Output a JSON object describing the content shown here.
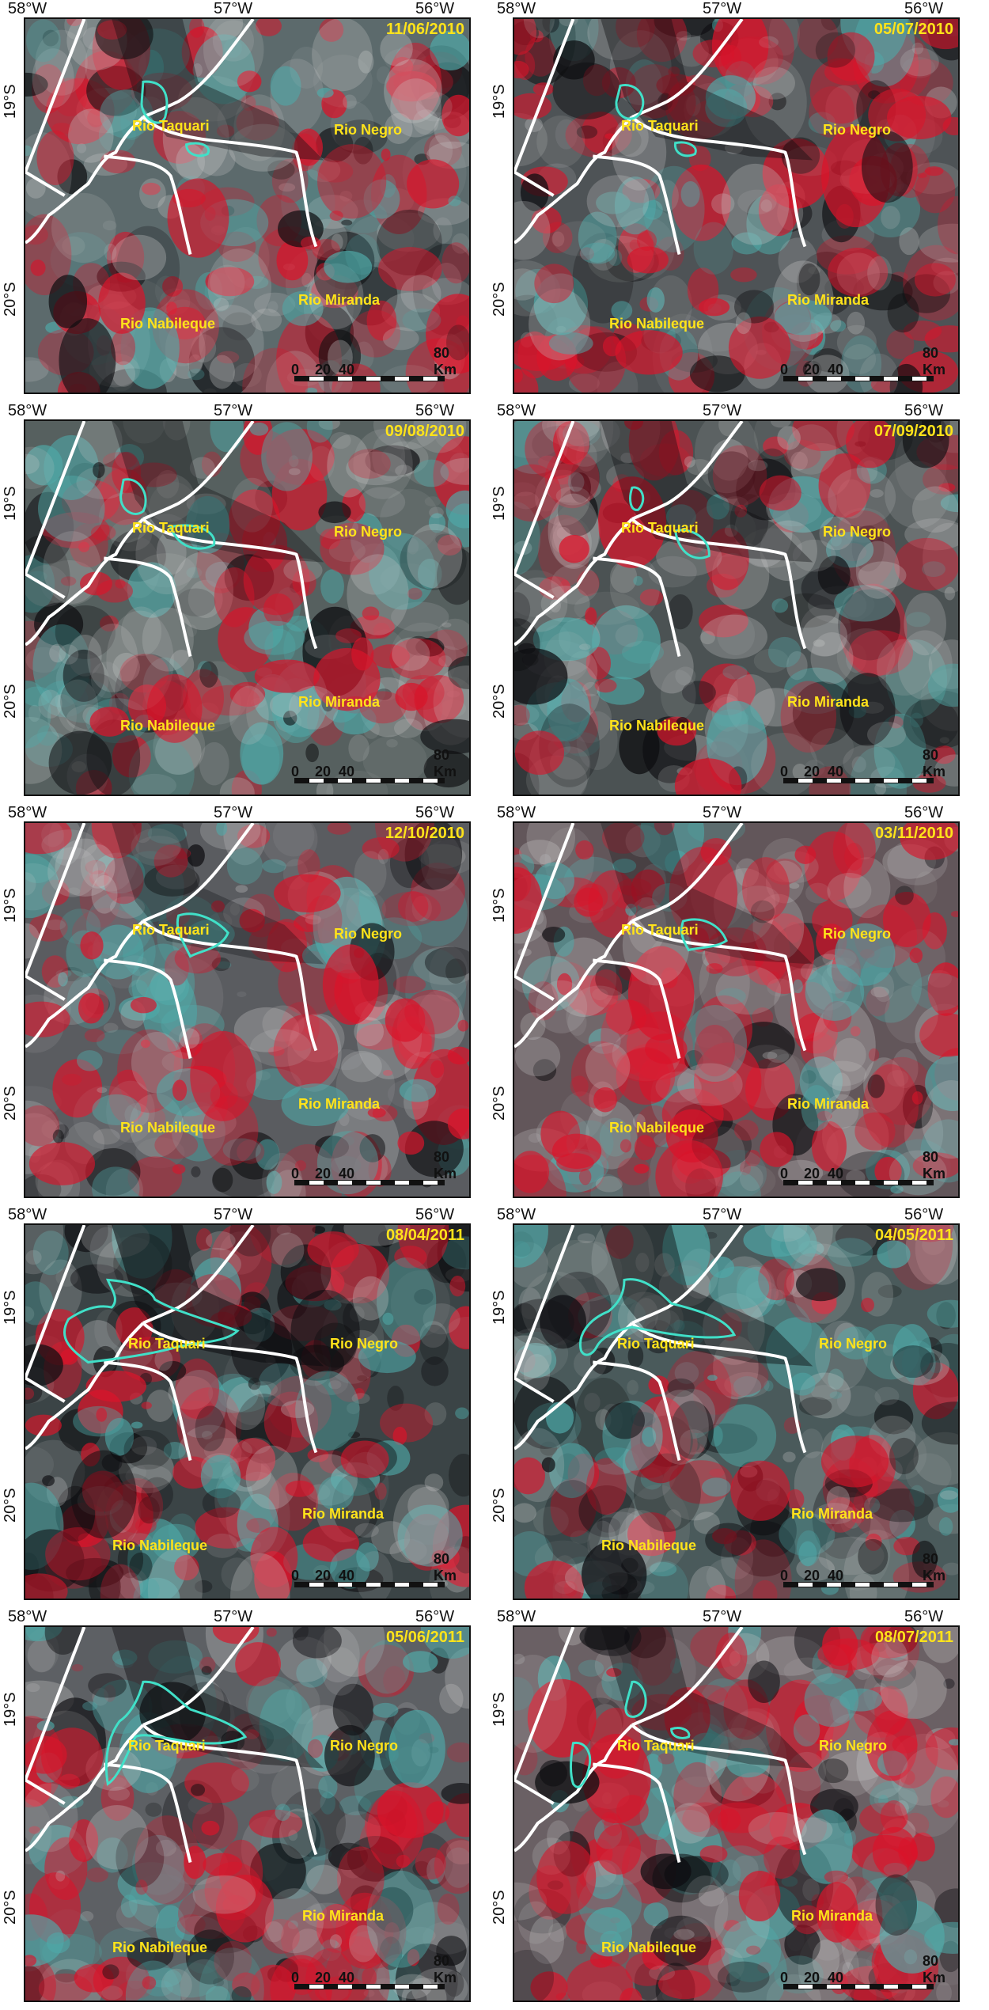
{
  "axes": {
    "lon_labels": [
      "58°W",
      "57°W",
      "56°W"
    ],
    "lat_labels": [
      "19°S",
      "20°S"
    ]
  },
  "rivers": {
    "negro": "Rio Negro",
    "taquari": "Rio Taquari",
    "miranda": "Rio Miranda",
    "nabileque": "Rio Nabileque"
  },
  "scalebar": {
    "ticks": [
      "0",
      "20",
      "40",
      "80 Km"
    ]
  },
  "colors": {
    "date_text": "#ffe31a",
    "river_label": "#ffe31a",
    "boundary": "#ffffff",
    "flood_outline": "#40e0c8",
    "vegetation_red": "#d9142a",
    "water_dark": "#0d0d10",
    "soil_cyan": "#4fa9a8"
  },
  "panels": [
    {
      "date": "11/06/2010"
    },
    {
      "date": "05/07/2010"
    },
    {
      "date": "09/08/2010"
    },
    {
      "date": "07/09/2010"
    },
    {
      "date": "12/10/2010"
    },
    {
      "date": "03/11/2010"
    },
    {
      "date": "08/04/2011"
    },
    {
      "date": "04/05/2011"
    },
    {
      "date": "05/06/2011"
    },
    {
      "date": "08/07/2011"
    }
  ]
}
